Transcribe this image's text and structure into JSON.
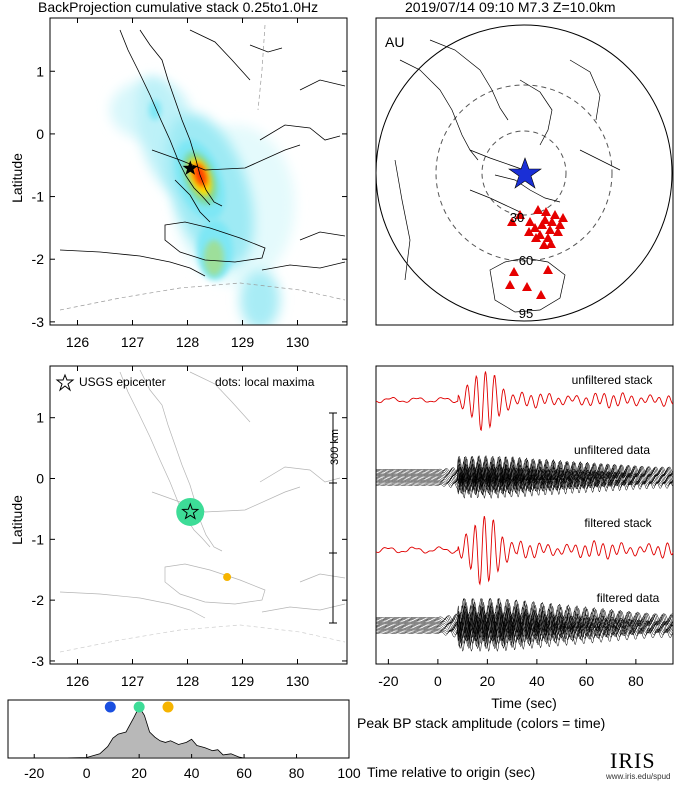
{
  "header": {
    "left_title": "BackProjection cumulative stack 0.25to1.0Hz",
    "right_title": "2019/07/14 09:10  M7.3  Z=10.0km"
  },
  "map_top": {
    "ylabel": "Latitude",
    "x_ticks": [
      "126",
      "127",
      "128",
      "129",
      "130"
    ],
    "y_ticks": [
      "1",
      "0",
      "-1",
      "-2",
      "-3"
    ],
    "xlim": [
      125.5,
      130.9
    ],
    "ylim": [
      -3.05,
      1.85
    ],
    "epicenter": {
      "lon": 128.05,
      "lat": -0.55
    },
    "colors": {
      "hot": "#ff3b00",
      "warm": "#ffdd00",
      "mid": "#7dd9a0",
      "cool": "#7ee7f5",
      "faint": "#d8f7fb"
    }
  },
  "map_globe": {
    "label": "AU",
    "ring_labels": [
      "30",
      "60",
      "95"
    ],
    "source_marker": "blue-star",
    "station_color": "#e60000"
  },
  "map_bottom": {
    "ylabel": "Latitude",
    "legend_epicenter": "USGS epicenter",
    "legend_dots": "dots: local maxima",
    "scale_label": "300 km",
    "x_ticks": [
      "126",
      "127",
      "128",
      "129",
      "130"
    ],
    "y_ticks": [
      "1",
      "0",
      "-1",
      "-2",
      "-3"
    ],
    "maxima": [
      {
        "lon": 128.05,
        "lat": -0.55,
        "color": "#3ddc97"
      },
      {
        "lon": 128.72,
        "lat": -1.62,
        "color": "#f6b400"
      }
    ]
  },
  "traces": {
    "labels": [
      "unfiltered stack",
      "unfiltered data",
      "filtered stack",
      "filtered data"
    ],
    "xlabel": "Time (sec)",
    "x_ticks": [
      "-20",
      "0",
      "20",
      "40",
      "60",
      "80"
    ],
    "xlim": [
      -25,
      95
    ],
    "stack_color": "#e00000",
    "data_color": "#000000"
  },
  "chart_data": {
    "type": "area",
    "title": "Peak BP stack amplitude (colors = time)",
    "xlabel": "Time relative to origin (sec)",
    "x_ticks": [
      "-20",
      "0",
      "20",
      "40",
      "60",
      "80",
      "100"
    ],
    "xlim": [
      -30,
      100
    ],
    "ylim": [
      0,
      1.0
    ],
    "x": [
      -30,
      -10,
      0,
      5,
      8,
      10,
      12,
      15,
      18,
      20,
      22,
      24,
      26,
      28,
      30,
      32,
      35,
      38,
      40,
      42,
      45,
      48,
      50,
      52,
      55,
      58,
      60,
      100
    ],
    "y": [
      0,
      0,
      0.01,
      0.08,
      0.22,
      0.38,
      0.46,
      0.5,
      0.78,
      0.98,
      0.82,
      0.5,
      0.4,
      0.33,
      0.3,
      0.33,
      0.26,
      0.3,
      0.36,
      0.24,
      0.2,
      0.14,
      0.16,
      0.06,
      0.08,
      0.02,
      0,
      0
    ],
    "peaks": [
      {
        "x": 9,
        "color": "#1a4fe0"
      },
      {
        "x": 20,
        "color": "#3ddc97"
      },
      {
        "x": 31,
        "color": "#f6b400"
      }
    ],
    "fill_color": "#b8b8b8"
  },
  "branding": {
    "logo_text": "IRIS",
    "url": "www.iris.edu/spud"
  }
}
